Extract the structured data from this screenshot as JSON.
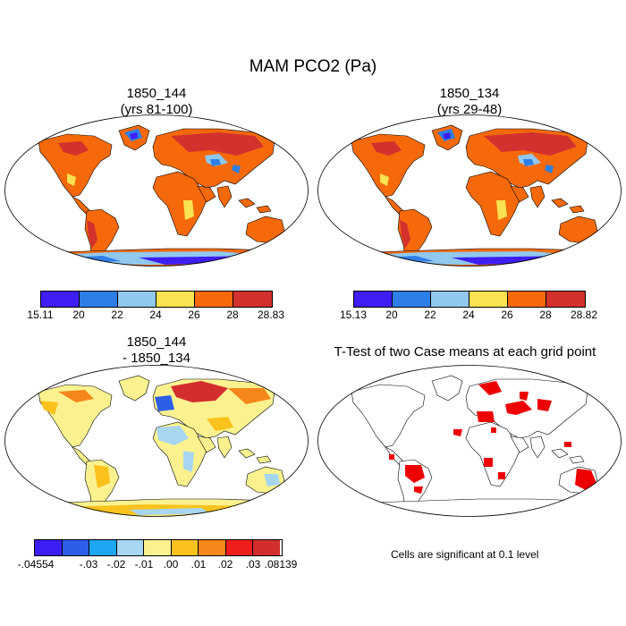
{
  "figure_title": "MAM PCO2 (Pa)",
  "panels": [
    {
      "title1": "1850_144",
      "title2": "(yrs 81-100)"
    },
    {
      "title1": "1850_134",
      "title2": "(yrs 29-48)"
    },
    {
      "title1": "1850_144",
      "title2": "- 1850_134"
    },
    {
      "title1": "T-Test of two Case means at each grid point",
      "title2": ""
    }
  ],
  "colorbars": {
    "a": {
      "colors": [
        "#3e1ef2",
        "#2e7ee8",
        "#90c8ee",
        "#fbe251",
        "#f5690a",
        "#d2312e"
      ],
      "labels": [
        "15.11",
        "20",
        "22",
        "24",
        "26",
        "28",
        "28.83"
      ]
    },
    "b": {
      "colors": [
        "#3e1ef2",
        "#2e7ee8",
        "#90c8ee",
        "#fbe251",
        "#f5690a",
        "#d2312e"
      ],
      "labels": [
        "15.13",
        "20",
        "22",
        "24",
        "26",
        "28",
        "28.82"
      ]
    },
    "c": {
      "colors": [
        "#3c1ff5",
        "#2c5ee8",
        "#1ea6f2",
        "#a7d6f2",
        "#fbf28f",
        "#fbc21e",
        "#f5861a",
        "#f01e1a",
        "#d22e2e"
      ],
      "labels": [
        "-.04554",
        "-.03",
        "-.02",
        "-.01",
        ".00",
        ".01",
        ".02",
        ".03",
        ".08139"
      ]
    }
  },
  "significance_note": "Cells are significant at 0.1 level"
}
